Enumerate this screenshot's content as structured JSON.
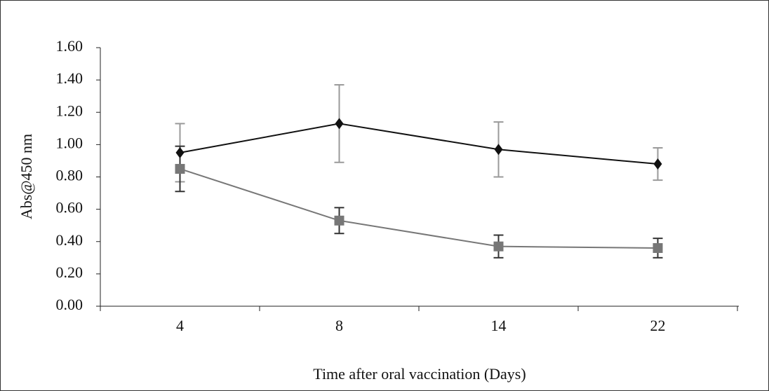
{
  "chart_data": {
    "type": "line",
    "x_label": "Time after oral vaccination (Days)",
    "y_label": "Abs@450 nm",
    "categories": [
      "4",
      "8",
      "14",
      "22"
    ],
    "series": [
      {
        "color": "#111111",
        "marker": "diamond",
        "error_color": "#9a9a9a",
        "values": [
          0.95,
          1.13,
          0.97,
          0.88
        ],
        "errors": [
          0.18,
          0.24,
          0.17,
          0.1
        ]
      },
      {
        "color": "#777777",
        "marker": "square",
        "error_color": "#333333",
        "values": [
          0.85,
          0.53,
          0.37,
          0.36
        ],
        "errors": [
          0.14,
          0.08,
          0.07,
          0.06
        ]
      }
    ],
    "ylim": [
      0,
      1.6
    ],
    "yticks": [
      {
        "value": 0,
        "label": "0.00"
      },
      {
        "value": 0.2,
        "label": "0.20"
      },
      {
        "value": 0.4,
        "label": "0.40"
      },
      {
        "value": 0.6,
        "label": "0.60"
      },
      {
        "value": 0.8,
        "label": "0.80"
      },
      {
        "value": 1.0,
        "label": "1.00"
      },
      {
        "value": 1.2,
        "label": "1.20"
      },
      {
        "value": 1.4,
        "label": "1.40"
      },
      {
        "value": 1.6,
        "label": "1.60"
      }
    ],
    "grid": false
  }
}
